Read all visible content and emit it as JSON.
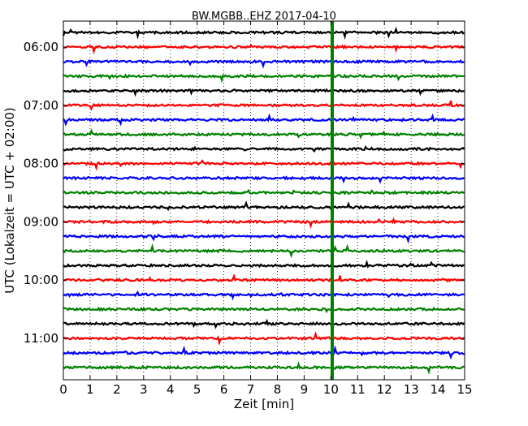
{
  "chart_data": {
    "type": "line",
    "title": "BW.MGBB..EHZ 2017-04-10",
    "xlabel": "Zeit  [min]",
    "ylabel": "UTC (Lokalzeit = UTC + 02:00)",
    "xlim": [
      0,
      15
    ],
    "x_ticks": [
      "0",
      "1",
      "2",
      "3",
      "4",
      "5",
      "6",
      "7",
      "8",
      "9",
      "10",
      "11",
      "12",
      "13",
      "14",
      "15"
    ],
    "y_tick_labels": [
      "06:00",
      "07:00",
      "08:00",
      "09:00",
      "10:00",
      "11:00"
    ],
    "grid": true,
    "trace_interval_minutes": 15,
    "trace_start": "05:45",
    "traces": [
      "05:45",
      "06:00",
      "06:15",
      "06:30",
      "06:45",
      "07:00",
      "07:15",
      "07:30",
      "07:45",
      "08:00",
      "08:15",
      "08:30",
      "08:45",
      "09:00",
      "09:15",
      "09:30",
      "09:45",
      "10:00",
      "10:15",
      "10:30",
      "10:45",
      "11:00",
      "11:15",
      "11:30"
    ],
    "trace_colors": [
      "#000000",
      "#ff0000",
      "#0000ff",
      "#008000"
    ],
    "event_marker": {
      "x": 10.05,
      "color": "#008000"
    }
  }
}
